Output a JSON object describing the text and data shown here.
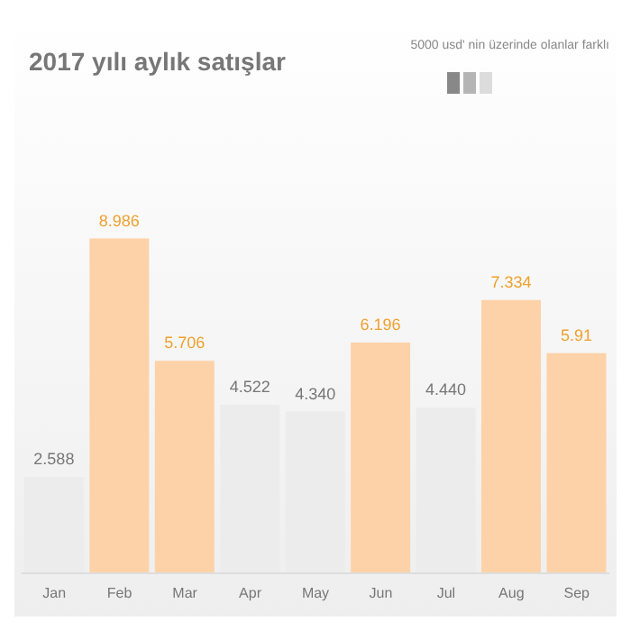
{
  "chart_data": {
    "type": "bar",
    "title": "2017 yılı aylık satışlar",
    "annotations": [
      "5000 usd' nin üzerinde olanlar farklı"
    ],
    "categories": [
      "Jan",
      "Feb",
      "Mar",
      "Apr",
      "May",
      "Jun",
      "Jul",
      "Aug",
      "Sep"
    ],
    "values": [
      2.588,
      8.986,
      5.706,
      4.522,
      4.34,
      6.196,
      4.44,
      7.334,
      5.91
    ],
    "value_labels": [
      "2.588",
      "8.986",
      "5.706",
      "4.522",
      "4.340",
      "6.196",
      "4.440",
      "7.334",
      "5.91"
    ],
    "colors": [
      "#ececec",
      "#fdd2a8",
      "#fdd2a8",
      "#ececec",
      "#ececec",
      "#fdd2a8",
      "#ececec",
      "#fdd2a8",
      "#fdd2a8"
    ],
    "tick_labels": "x"
  }
}
